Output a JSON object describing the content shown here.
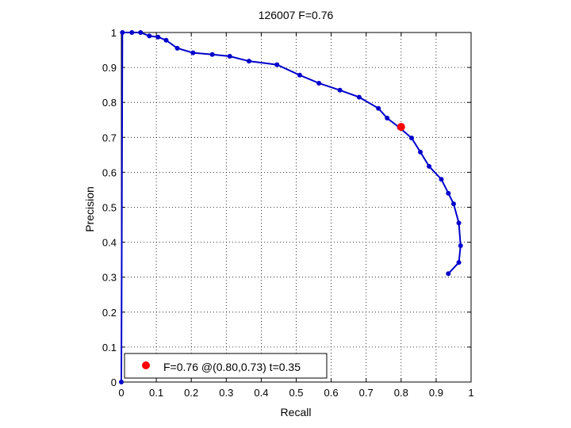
{
  "chart_data": {
    "type": "line",
    "title": "126007 F=0.76",
    "xlabel": "Recall",
    "ylabel": "Precision",
    "xlim": [
      0,
      1
    ],
    "ylim": [
      0,
      1
    ],
    "grid": true,
    "x_ticks": [
      "0",
      "0.1",
      "0.2",
      "0.3",
      "0.4",
      "0.5",
      "0.6",
      "0.7",
      "0.8",
      "0.9",
      "1"
    ],
    "y_ticks": [
      "0",
      "0.1",
      "0.2",
      "0.3",
      "0.4",
      "0.5",
      "0.6",
      "0.7",
      "0.8",
      "0.9",
      "1"
    ],
    "series": [
      {
        "color": "#0000cc",
        "points": [
          [
            0.0,
            0.0
          ],
          [
            0.003,
            1.0
          ],
          [
            0.03,
            1.0
          ],
          [
            0.055,
            1.0
          ],
          [
            0.08,
            0.99
          ],
          [
            0.105,
            0.987
          ],
          [
            0.128,
            0.978
          ],
          [
            0.16,
            0.955
          ],
          [
            0.205,
            0.942
          ],
          [
            0.26,
            0.937
          ],
          [
            0.31,
            0.932
          ],
          [
            0.365,
            0.918
          ],
          [
            0.445,
            0.908
          ],
          [
            0.51,
            0.878
          ],
          [
            0.565,
            0.855
          ],
          [
            0.625,
            0.835
          ],
          [
            0.68,
            0.815
          ],
          [
            0.735,
            0.783
          ],
          [
            0.76,
            0.755
          ],
          [
            0.795,
            0.728
          ],
          [
            0.83,
            0.698
          ],
          [
            0.855,
            0.658
          ],
          [
            0.88,
            0.617
          ],
          [
            0.915,
            0.58
          ],
          [
            0.935,
            0.54
          ],
          [
            0.95,
            0.51
          ],
          [
            0.965,
            0.455
          ],
          [
            0.97,
            0.39
          ],
          [
            0.965,
            0.342
          ],
          [
            0.935,
            0.31
          ]
        ]
      }
    ],
    "highlight": {
      "x": 0.8,
      "y": 0.73,
      "color": "#ff0000"
    },
    "legend": {
      "text": "F=0.76 @(0.80,0.73) t=0.35",
      "placement": "bottom-left"
    }
  }
}
